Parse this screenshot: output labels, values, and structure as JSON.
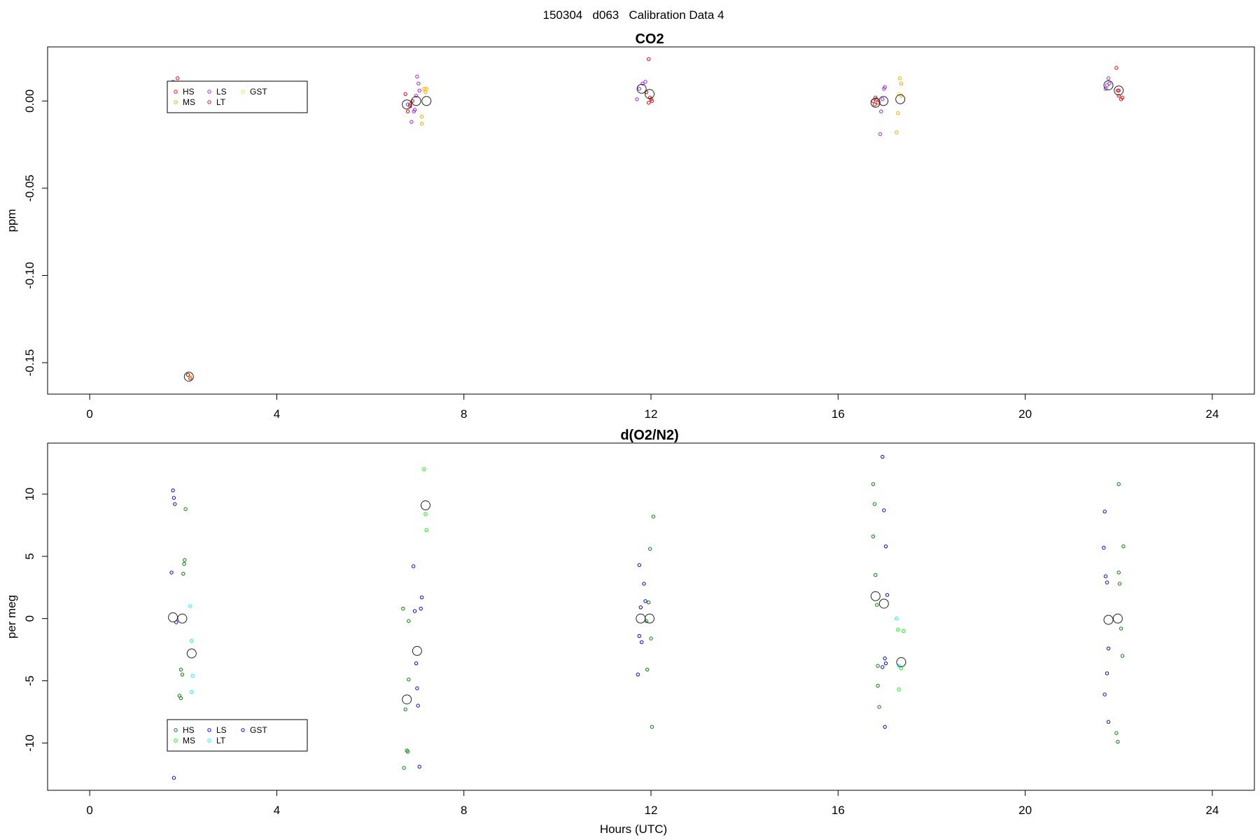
{
  "figure_title": "150304   d063   Calibration Data 4",
  "x_axis_title": "Hours (UTC)",
  "chart_data": [
    {
      "type": "scatter",
      "title": "CO2",
      "xlabel": "",
      "ylabel": "ppm",
      "xlim": [
        -0.9,
        24.9
      ],
      "ylim": [
        -0.168,
        0.031
      ],
      "xticks": [
        0,
        4,
        8,
        12,
        16,
        20,
        24
      ],
      "xtick_labels": [
        "0",
        "4",
        "8",
        "12",
        "16",
        "20",
        "24"
      ],
      "yticks": [
        0.0,
        -0.05,
        -0.1,
        -0.15
      ],
      "ytick_labels": [
        "0.00",
        "-0.05",
        "-0.10",
        "-0.15"
      ],
      "legend_position": "top-left",
      "series": [
        {
          "name": "HS",
          "color": "#ff0000",
          "points": [
            [
              1.88,
              0.013
            ],
            [
              2.1,
              -0.157
            ],
            [
              2.15,
              -0.159
            ],
            [
              6.75,
              0.004
            ],
            [
              6.8,
              -0.006
            ],
            [
              6.85,
              -0.003
            ],
            [
              6.9,
              0.0
            ],
            [
              11.95,
              0.024
            ],
            [
              11.9,
              0.005
            ],
            [
              11.95,
              -0.001
            ],
            [
              12.0,
              0.001
            ],
            [
              12.02,
              0.0
            ],
            [
              16.75,
              0.0
            ],
            [
              16.78,
              -0.002
            ],
            [
              16.82,
              0.001
            ],
            [
              16.85,
              -0.001
            ],
            [
              21.95,
              0.019
            ],
            [
              21.98,
              0.006
            ],
            [
              22.0,
              0.003
            ],
            [
              22.05,
              0.001
            ],
            [
              22.08,
              0.002
            ]
          ]
        },
        {
          "name": "MS",
          "color": "#ffa500",
          "points": [
            [
              2.15,
              -0.158
            ],
            [
              7.1,
              -0.009
            ],
            [
              7.1,
              -0.013
            ],
            [
              7.15,
              0.007
            ],
            [
              7.18,
              0.005
            ],
            [
              7.2,
              0.007
            ],
            [
              17.25,
              -0.018
            ],
            [
              17.28,
              -0.007
            ],
            [
              17.32,
              0.013
            ],
            [
              17.35,
              0.01
            ],
            [
              17.35,
              0.003
            ]
          ]
        },
        {
          "name": "LS",
          "color": "#a020f0",
          "points": [
            [
              1.78,
              0.011
            ],
            [
              6.8,
              -0.002
            ],
            [
              6.88,
              -0.012
            ],
            [
              6.93,
              -0.006
            ],
            [
              6.95,
              -0.005
            ],
            [
              6.98,
              0.003
            ],
            [
              7.0,
              0.014
            ],
            [
              7.03,
              0.01
            ],
            [
              7.05,
              0.006
            ],
            [
              11.7,
              0.001
            ],
            [
              11.75,
              0.007
            ],
            [
              11.82,
              0.01
            ],
            [
              11.88,
              0.011
            ],
            [
              16.9,
              -0.019
            ],
            [
              16.92,
              -0.006
            ],
            [
              16.95,
              0.001
            ],
            [
              16.98,
              0.007
            ],
            [
              17.0,
              0.008
            ],
            [
              21.72,
              0.007
            ],
            [
              21.75,
              0.009
            ],
            [
              21.78,
              0.013
            ],
            [
              21.8,
              0.01
            ]
          ]
        },
        {
          "name": "LT",
          "color": "#b22222",
          "points": [
            [
              2.1,
              -0.157
            ],
            [
              6.85,
              -0.002
            ],
            [
              11.98,
              0.002
            ],
            [
              16.8,
              0.002
            ],
            [
              22.0,
              0.006
            ]
          ]
        },
        {
          "name": "GST",
          "color": "#ffe135",
          "points": [
            [
              7.15,
              0.006
            ],
            [
              17.3,
              0.004
            ]
          ]
        }
      ],
      "means": [
        [
          2.12,
          -0.158
        ],
        [
          6.78,
          -0.002
        ],
        [
          6.98,
          0.0
        ],
        [
          7.2,
          0.0
        ],
        [
          11.8,
          0.007
        ],
        [
          11.97,
          0.004
        ],
        [
          16.8,
          -0.001
        ],
        [
          16.97,
          0.0
        ],
        [
          17.33,
          0.001
        ],
        [
          21.78,
          0.009
        ],
        [
          22.0,
          0.006
        ]
      ]
    },
    {
      "type": "scatter",
      "title": "d(O2/N2)",
      "xlabel": "Hours (UTC)",
      "ylabel": "per meg",
      "xlim": [
        -0.9,
        24.9
      ],
      "ylim": [
        -13.8,
        14.1
      ],
      "xticks": [
        0,
        4,
        8,
        12,
        16,
        20,
        24
      ],
      "xtick_labels": [
        "0",
        "4",
        "8",
        "12",
        "16",
        "20",
        "24"
      ],
      "yticks": [
        10,
        5,
        0,
        -5,
        -10
      ],
      "ytick_labels": [
        "10",
        "5",
        "0",
        "-5",
        "-10"
      ],
      "legend_position": "bottom-left",
      "series": [
        {
          "name": "HS",
          "color": "#008000",
          "points": [
            [
              1.95,
              -4.1
            ],
            [
              1.98,
              -4.5
            ],
            [
              1.92,
              -6.2
            ],
            [
              1.95,
              -6.4
            ],
            [
              2.0,
              3.6
            ],
            [
              2.02,
              4.4
            ],
            [
              2.03,
              4.7
            ],
            [
              2.05,
              8.8
            ],
            [
              6.72,
              -12.0
            ],
            [
              6.75,
              -7.3
            ],
            [
              6.78,
              -10.6
            ],
            [
              6.8,
              -10.7
            ],
            [
              6.82,
              -4.9
            ],
            [
              6.82,
              -0.2
            ],
            [
              6.7,
              0.8
            ],
            [
              11.92,
              -4.1
            ],
            [
              11.95,
              1.3
            ],
            [
              11.98,
              5.6
            ],
            [
              12.0,
              -1.6
            ],
            [
              12.02,
              -8.7
            ],
            [
              12.05,
              8.2
            ],
            [
              11.9,
              -0.2
            ],
            [
              16.75,
              10.8
            ],
            [
              16.78,
              9.2
            ],
            [
              16.75,
              6.6
            ],
            [
              16.8,
              3.5
            ],
            [
              16.83,
              1.1
            ],
            [
              16.85,
              -3.8
            ],
            [
              16.85,
              -5.4
            ],
            [
              16.88,
              -7.1
            ],
            [
              21.95,
              -9.2
            ],
            [
              21.98,
              -9.9
            ],
            [
              22.0,
              3.7
            ],
            [
              22.02,
              2.8
            ],
            [
              22.05,
              -0.8
            ],
            [
              22.08,
              -3.0
            ],
            [
              22.1,
              5.8
            ],
            [
              22.0,
              10.8
            ]
          ]
        },
        {
          "name": "MS",
          "color": "#00ff00",
          "points": [
            [
              7.15,
              12.0
            ],
            [
              7.18,
              8.4
            ],
            [
              7.2,
              7.1
            ],
            [
              17.28,
              -0.9
            ],
            [
              17.3,
              -5.7
            ],
            [
              17.35,
              -4.0
            ],
            [
              17.4,
              -1.0
            ]
          ]
        },
        {
          "name": "LS",
          "color": "#0000ff",
          "points": [
            [
              1.75,
              3.7
            ],
            [
              1.78,
              10.3
            ],
            [
              1.8,
              9.7
            ],
            [
              1.82,
              9.2
            ],
            [
              1.85,
              -0.3
            ],
            [
              1.8,
              -12.8
            ],
            [
              6.92,
              4.2
            ],
            [
              6.95,
              0.6
            ],
            [
              6.98,
              -3.6
            ],
            [
              7.0,
              -5.6
            ],
            [
              7.02,
              -7.0
            ],
            [
              7.05,
              -11.9
            ],
            [
              7.08,
              0.8
            ],
            [
              7.1,
              1.7
            ],
            [
              11.75,
              4.3
            ],
            [
              11.78,
              0.9
            ],
            [
              11.8,
              -1.9
            ],
            [
              11.85,
              2.8
            ],
            [
              11.88,
              1.4
            ],
            [
              11.75,
              -1.4
            ],
            [
              11.72,
              -4.5
            ],
            [
              16.95,
              13.0
            ],
            [
              16.98,
              8.7
            ],
            [
              17.02,
              5.8
            ],
            [
              17.05,
              1.9
            ],
            [
              17.0,
              -3.2
            ],
            [
              17.02,
              -3.6
            ],
            [
              16.95,
              -3.9
            ],
            [
              17.0,
              -8.7
            ],
            [
              21.7,
              8.6
            ],
            [
              21.68,
              5.7
            ],
            [
              21.72,
              3.4
            ],
            [
              21.75,
              2.9
            ],
            [
              21.78,
              -2.4
            ],
            [
              21.75,
              -4.4
            ],
            [
              21.7,
              -6.1
            ],
            [
              21.78,
              -8.3
            ]
          ]
        },
        {
          "name": "LT",
          "color": "#00ffff",
          "points": [
            [
              2.15,
              1.0
            ],
            [
              2.18,
              -1.8
            ],
            [
              2.2,
              -4.6
            ],
            [
              2.18,
              -5.9
            ],
            [
              17.25,
              0.0
            ],
            [
              17.3,
              -3.8
            ]
          ]
        },
        {
          "name": "GST",
          "color": "#0000cd",
          "points": []
        }
      ],
      "means": [
        [
          1.78,
          0.1
        ],
        [
          1.98,
          0.0
        ],
        [
          2.18,
          -2.8
        ],
        [
          6.78,
          -6.5
        ],
        [
          7.0,
          -2.6
        ],
        [
          7.18,
          9.1
        ],
        [
          11.78,
          0.0
        ],
        [
          11.97,
          0.0
        ],
        [
          16.8,
          1.8
        ],
        [
          16.98,
          1.2
        ],
        [
          17.35,
          -3.5
        ],
        [
          21.78,
          -0.1
        ],
        [
          21.98,
          0.0
        ]
      ]
    }
  ]
}
